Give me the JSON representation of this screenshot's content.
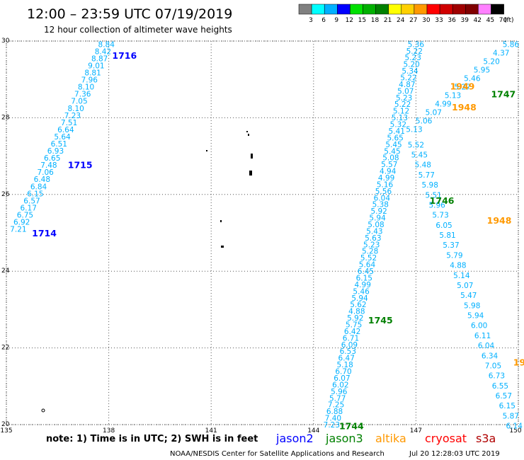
{
  "header": {
    "title": "12:00 – 23:59 UTC 07/19/2019",
    "subtitle": "12 hour collection of altimeter wave heights",
    "unit": "(ft)",
    "legend": [
      {
        "label": "3",
        "color": "#808080"
      },
      {
        "label": "6",
        "color": "#00ffff"
      },
      {
        "label": "9",
        "color": "#00b0ff"
      },
      {
        "label": "12",
        "color": "#0000ff"
      },
      {
        "label": "15",
        "color": "#00e000"
      },
      {
        "label": "18",
        "color": "#00b000"
      },
      {
        "label": "21",
        "color": "#008000"
      },
      {
        "label": "24",
        "color": "#ffff00"
      },
      {
        "label": "27",
        "color": "#ffd000"
      },
      {
        "label": "30",
        "color": "#ff9900"
      },
      {
        "label": "33",
        "color": "#ff0000"
      },
      {
        "label": "36",
        "color": "#d00000"
      },
      {
        "label": "39",
        "color": "#a00000"
      },
      {
        "label": "42",
        "color": "#800000"
      },
      {
        "label": "45",
        "color": "#ff80ff"
      },
      {
        "label": "70",
        "color": "#000000"
      }
    ]
  },
  "axes": {
    "lon_ticks": [
      "135",
      "138",
      "141",
      "144",
      "147",
      "150"
    ],
    "lat_ticks": [
      "30",
      "28",
      "26",
      "24",
      "22",
      "20"
    ],
    "lon_range": [
      135,
      150
    ],
    "lat_range": [
      20,
      30
    ]
  },
  "footer": {
    "note": "note: 1) Time is in UTC; 2) SWH is in feet",
    "satellites": [
      {
        "name": "jason2",
        "color": "#0000ff"
      },
      {
        "name": "jason3",
        "color": "#008000"
      },
      {
        "name": "altika",
        "color": "#ff9900"
      },
      {
        "name": "cryosat",
        "color": "#ff0000"
      },
      {
        "name": "s3a",
        "color": "#b00000"
      }
    ],
    "credit": "NOAA/NESDIS Center for Satellite Applications and Research",
    "timestamp": "Jul 20 12:28:03 UTC 2019"
  },
  "colors": {
    "swh": "#00b0ff",
    "grid": "#555555"
  },
  "tracks": [
    {
      "id": "west",
      "lon_top": 137.93,
      "lat_top": 29.92,
      "lon_bottom": 135.35,
      "lat_bottom": 25.1,
      "values": [
        "8.84",
        "8.42",
        "8.87",
        "9.01",
        "8.81",
        "7.96",
        "8.10",
        "7.36",
        "7.05",
        "8.10",
        "7.23",
        "7.51",
        "6.64",
        "5.64",
        "6.51",
        "6.93",
        "6.65",
        "7.48",
        "7.06",
        "6.48",
        "6.84",
        "6.15",
        "6.57",
        "6.17",
        "6.75",
        "6.92",
        "7.21"
      ]
    },
    {
      "id": "asc",
      "lon_top": 147.0,
      "lat_top": 29.92,
      "lon_bottom": 144.53,
      "lat_bottom": 20.0,
      "values": [
        "5.36",
        "5.22",
        "5.23",
        "5.20",
        "5.34",
        "5.22",
        "4.87",
        "5.07",
        "5.23",
        "5.22",
        "5.12",
        "5.13",
        "5.32",
        "5.41",
        "5.65",
        "5.45",
        "5.45",
        "5.08",
        "5.57",
        "4.94",
        "4.99",
        "5.16",
        "5.56",
        "6.04",
        "5.38",
        "5.92",
        "5.94",
        "5.08",
        "5.43",
        "5.63",
        "5.23",
        "5.28",
        "5.52",
        "5.64",
        "6.45",
        "6.15",
        "4.99",
        "5.46",
        "5.94",
        "5.62",
        "4.88",
        "5.92",
        "5.75",
        "6.42",
        "6.71",
        "6.09",
        "6.53",
        "6.47",
        "5.18",
        "6.70",
        "6.07",
        "6.02",
        "5.96",
        "5.77",
        "7.25",
        "6.88",
        "7.40",
        "7.23"
      ]
    },
    {
      "id": "desc",
      "lon_top": 149.78,
      "lat_top": 29.92,
      "lon_bottom": 146.95,
      "lat_bottom": 27.7,
      "values": [
        "5.86",
        "4.37",
        "5.20",
        "5.95",
        "5.46",
        "5.27",
        "5.13",
        "4.99",
        "5.07",
        "5.06",
        "5.13"
      ]
    },
    {
      "id": "asc2",
      "lon_top": 147.0,
      "lat_top": 27.3,
      "lon_bottom": 149.88,
      "lat_bottom": 19.97,
      "values": [
        "5.52",
        "5.45",
        "5.48",
        "5.77",
        "5.98",
        "5.51",
        "5.96",
        "5.73",
        "6.05",
        "5.81",
        "5.37",
        "5.79",
        "4.88",
        "5.14",
        "5.07",
        "5.47",
        "5.98",
        "5.94",
        "6.00",
        "6.11",
        "6.04",
        "6.34",
        "7.05",
        "6.73",
        "6.55",
        "6.57",
        "6.15",
        "5.87",
        "6.14"
      ]
    }
  ],
  "pass_labels": [
    {
      "text": "1716",
      "color": "#0000ff",
      "lon": 138.1,
      "lat": 29.63
    },
    {
      "text": "1715",
      "color": "#0000ff",
      "lon": 136.8,
      "lat": 26.78
    },
    {
      "text": "1714",
      "color": "#0000ff",
      "lon": 135.75,
      "lat": 25.0
    },
    {
      "text": "1949",
      "color": "#ff9900",
      "lon": 148.0,
      "lat": 28.83
    },
    {
      "text": "1948",
      "color": "#ff9900",
      "lon": 148.05,
      "lat": 28.28
    },
    {
      "text": "1747",
      "color": "#008000",
      "lon": 149.2,
      "lat": 28.63
    },
    {
      "text": "1746",
      "color": "#008000",
      "lon": 147.4,
      "lat": 25.85
    },
    {
      "text": "1948",
      "color": "#ff9900",
      "lon": 149.08,
      "lat": 25.33
    },
    {
      "text": "1745",
      "color": "#008000",
      "lon": 145.6,
      "lat": 22.73
    },
    {
      "text": "19",
      "color": "#ff9900",
      "lon": 149.85,
      "lat": 21.63
    },
    {
      "text": "1744",
      "color": "#008000",
      "lon": 144.75,
      "lat": 19.97
    }
  ]
}
